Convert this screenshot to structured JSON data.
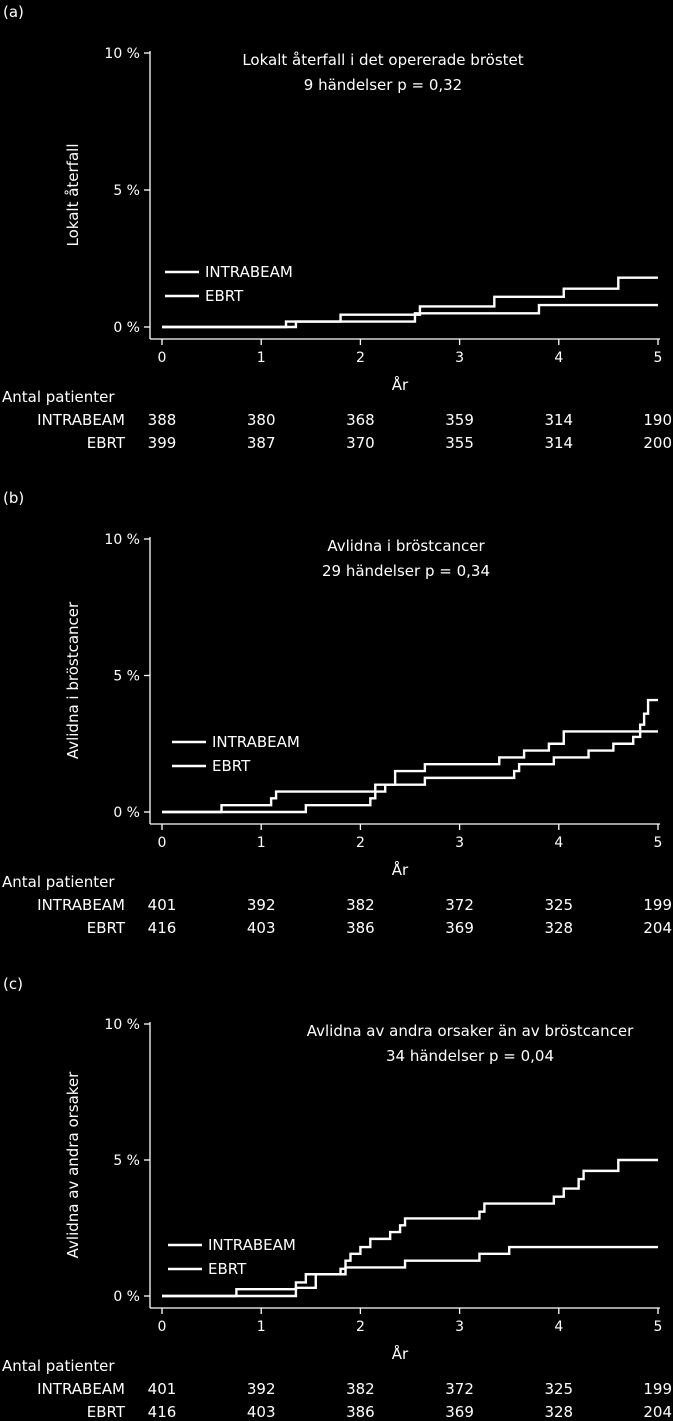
{
  "colors": {
    "background": "#000000",
    "foreground": "#ffffff"
  },
  "chart_data": [
    {
      "type": "line",
      "panel_label": "(a)",
      "title": "Lokalt återfall i det opererade bröstet",
      "subtitle": "9 händelser  p = 0,32",
      "xlabel": "År",
      "ylabel": "Lokalt återfall",
      "xlim": [
        0,
        5
      ],
      "ylim": [
        0,
        10
      ],
      "xticks": [
        "0",
        "1",
        "2",
        "3",
        "4",
        "5"
      ],
      "yticks": [
        "0 %",
        "5 %",
        "10 %"
      ],
      "grid": false,
      "legend_position": "left",
      "series": [
        {
          "name": "INTRABEAM",
          "steps": [
            [
              0,
              0
            ],
            [
              1.25,
              0.2
            ],
            [
              1.8,
              0.45
            ],
            [
              2.6,
              0.75
            ],
            [
              3.35,
              1.1
            ],
            [
              4.05,
              1.4
            ],
            [
              4.6,
              1.8
            ],
            [
              5,
              1.8
            ]
          ]
        },
        {
          "name": "EBRT",
          "steps": [
            [
              0,
              0
            ],
            [
              1.35,
              0.2
            ],
            [
              2.55,
              0.5
            ],
            [
              3.8,
              0.8
            ],
            [
              5,
              0.8
            ]
          ]
        }
      ],
      "at_risk": {
        "label": "Antal patienter",
        "x": [
          0,
          1,
          2,
          3,
          4,
          5
        ],
        "rows": [
          {
            "name": "INTRABEAM",
            "values": [
              "388",
              "380",
              "368",
              "359",
              "314",
              "190"
            ]
          },
          {
            "name": "EBRT",
            "values": [
              "399",
              "387",
              "370",
              "355",
              "314",
              "200"
            ]
          }
        ]
      }
    },
    {
      "type": "line",
      "panel_label": "(b)",
      "title": "Avlidna i bröstcancer",
      "subtitle": "29 händelser  p = 0,34",
      "xlabel": "År",
      "ylabel": "Avlidna i bröstcancer",
      "xlim": [
        0,
        5
      ],
      "ylim": [
        0,
        10
      ],
      "xticks": [
        "0",
        "1",
        "2",
        "3",
        "4",
        "5"
      ],
      "yticks": [
        "0 %",
        "5 %",
        "10 %"
      ],
      "grid": false,
      "legend_position": "left",
      "series": [
        {
          "name": "INTRABEAM",
          "steps": [
            [
              0,
              0
            ],
            [
              1.45,
              0.25
            ],
            [
              2.1,
              0.5
            ],
            [
              2.15,
              0.75
            ],
            [
              2.25,
              1.0
            ],
            [
              2.65,
              1.25
            ],
            [
              3.55,
              1.5
            ],
            [
              3.6,
              1.75
            ],
            [
              3.95,
              2.0
            ],
            [
              4.3,
              2.25
            ],
            [
              4.55,
              2.5
            ],
            [
              4.75,
              2.75
            ],
            [
              4.82,
              3.2
            ],
            [
              4.86,
              3.6
            ],
            [
              4.9,
              4.1
            ],
            [
              5,
              4.1
            ]
          ]
        },
        {
          "name": "EBRT",
          "steps": [
            [
              0,
              0
            ],
            [
              0.6,
              0.25
            ],
            [
              1.1,
              0.5
            ],
            [
              1.15,
              0.75
            ],
            [
              2.15,
              1.0
            ],
            [
              2.35,
              1.5
            ],
            [
              2.65,
              1.75
            ],
            [
              3.4,
              2.0
            ],
            [
              3.65,
              2.25
            ],
            [
              3.9,
              2.5
            ],
            [
              4.05,
              2.95
            ],
            [
              5,
              2.95
            ]
          ]
        }
      ],
      "at_risk": {
        "label": "Antal patienter",
        "x": [
          0,
          1,
          2,
          3,
          4,
          5
        ],
        "rows": [
          {
            "name": "INTRABEAM",
            "values": [
              "401",
              "392",
              "382",
              "372",
              "325",
              "199"
            ]
          },
          {
            "name": "EBRT",
            "values": [
              "416",
              "403",
              "386",
              "369",
              "328",
              "204"
            ]
          }
        ]
      }
    },
    {
      "type": "line",
      "panel_label": "(c)",
      "title": "Avlidna av andra orsaker än av bröstcancer",
      "subtitle": "34 händelser  p = 0,04",
      "xlabel": "År",
      "ylabel": "Avlidna av andra orsaker",
      "xlim": [
        0,
        5
      ],
      "ylim": [
        0,
        10
      ],
      "xticks": [
        "0",
        "1",
        "2",
        "3",
        "4",
        "5"
      ],
      "yticks": [
        "0 %",
        "5 %",
        "10 %"
      ],
      "grid": false,
      "legend_position": "left",
      "series": [
        {
          "name": "INTRABEAM",
          "steps": [
            [
              0,
              0
            ],
            [
              1.35,
              0.5
            ],
            [
              1.45,
              0.8
            ],
            [
              1.8,
              1.0
            ],
            [
              1.85,
              1.3
            ],
            [
              1.9,
              1.55
            ],
            [
              2.0,
              1.8
            ],
            [
              2.1,
              2.1
            ],
            [
              2.3,
              2.35
            ],
            [
              2.4,
              2.6
            ],
            [
              2.45,
              2.85
            ],
            [
              3.2,
              3.1
            ],
            [
              3.25,
              3.4
            ],
            [
              3.95,
              3.65
            ],
            [
              4.05,
              3.95
            ],
            [
              4.2,
              4.3
            ],
            [
              4.25,
              4.6
            ],
            [
              4.6,
              5.0
            ],
            [
              5,
              5.0
            ]
          ]
        },
        {
          "name": "EBRT",
          "steps": [
            [
              0,
              0
            ],
            [
              0.75,
              0.25
            ],
            [
              1.35,
              0.3
            ],
            [
              1.55,
              0.8
            ],
            [
              1.85,
              1.05
            ],
            [
              2.45,
              1.3
            ],
            [
              3.2,
              1.55
            ],
            [
              3.5,
              1.8
            ],
            [
              5,
              1.8
            ]
          ]
        }
      ],
      "at_risk": {
        "label": "Antal patienter",
        "x": [
          0,
          1,
          2,
          3,
          4,
          5
        ],
        "rows": [
          {
            "name": "INTRABEAM",
            "values": [
              "401",
              "392",
              "382",
              "372",
              "325",
              "199"
            ]
          },
          {
            "name": "EBRT",
            "values": [
              "416",
              "403",
              "386",
              "369",
              "328",
              "204"
            ]
          }
        ]
      }
    }
  ]
}
